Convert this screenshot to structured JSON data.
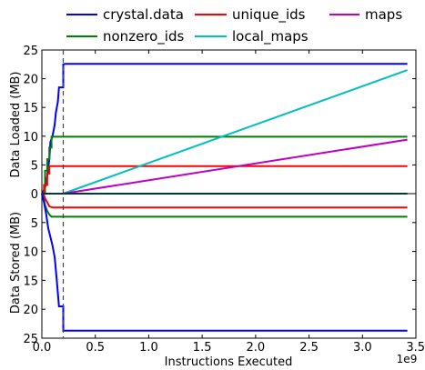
{
  "chart_data": {
    "type": "line",
    "xlabel": "Instructions Executed",
    "x_exponent_label": "1e9",
    "x_scale": 1000000000,
    "xlim": [
      0,
      3.5
    ],
    "x_ticks": [
      0.0,
      0.5,
      1.0,
      1.5,
      2.0,
      2.5,
      3.0,
      3.5
    ],
    "x_tick_labels": [
      "0.0",
      "0.5",
      "1.0",
      "1.5",
      "2.0",
      "2.5",
      "3.0",
      "3.5"
    ],
    "vline_x": 0.2,
    "legend": {
      "placement": "top",
      "items": [
        {
          "name": "crystal.data",
          "color": "#0000ff"
        },
        {
          "name": "unique_ids",
          "color": "#ff0000"
        },
        {
          "name": "maps",
          "color": "#bf00bf"
        },
        {
          "name": "nonzero_ids",
          "color": "#008000"
        },
        {
          "name": "local_maps",
          "color": "#00bfbf"
        }
      ]
    },
    "panels": [
      {
        "id": "loaded",
        "ylabel": "Data Loaded (MB)",
        "ylim": [
          0,
          25
        ],
        "y_ticks": [
          0,
          5,
          10,
          15,
          20,
          25
        ],
        "y_tick_labels": [
          "0",
          "5",
          "10",
          "15",
          "20",
          "25"
        ],
        "series": [
          {
            "name": "crystal.data",
            "color": "#0000ff",
            "x": [
              0,
              0.03,
              0.05,
              0.07,
              0.08,
              0.1,
              0.12,
              0.13,
              0.15,
              0.16,
              0.16,
              0.2,
              0.2,
              0.22,
              3.42
            ],
            "y": [
              0,
              1,
              3,
              6,
              9,
              10,
              12,
              14,
              16,
              18.5,
              18.5,
              18.5,
              22.5,
              22.6,
              22.6
            ]
          },
          {
            "name": "nonzero_ids",
            "color": "#008000",
            "x": [
              0,
              0.03,
              0.03,
              0.05,
              0.05,
              0.07,
              0.07,
              0.09,
              0.09,
              3.42
            ],
            "y": [
              0,
              0,
              4,
              4,
              6,
              6,
              8,
              8,
              9.9,
              9.9
            ]
          },
          {
            "name": "unique_ids",
            "color": "#ff0000",
            "x": [
              0,
              0.02,
              0.02,
              0.05,
              0.05,
              0.07,
              0.07,
              3.42
            ],
            "y": [
              0,
              0,
              1.5,
              1.5,
              3.5,
              3.5,
              4.8,
              4.8
            ]
          },
          {
            "name": "local_maps",
            "color": "#00bfbf",
            "x": [
              0.2,
              3.42
            ],
            "y": [
              0,
              21.5
            ]
          },
          {
            "name": "maps",
            "color": "#bf00bf",
            "x": [
              0.2,
              3.42
            ],
            "y": [
              0,
              9.4
            ]
          },
          {
            "name": "zero-baseline",
            "color": "#003a3a",
            "x": [
              0,
              3.42
            ],
            "y": [
              0,
              0
            ]
          }
        ]
      },
      {
        "id": "stored",
        "ylabel": "Data Stored (MB)",
        "ylim": [
          0,
          25
        ],
        "y_ticks": [
          0,
          5,
          10,
          15,
          20,
          25
        ],
        "y_tick_labels": [
          "0",
          "5",
          "10",
          "15",
          "20",
          "25"
        ],
        "inverted": true,
        "series": [
          {
            "name": "unique_ids",
            "color": "#ff0000",
            "x": [
              0,
              0.02,
              0.03,
              0.05,
              0.07,
              0.1,
              3.42
            ],
            "y": [
              0,
              0.3,
              0.8,
              1.5,
              2.2,
              2.4,
              2.4
            ]
          },
          {
            "name": "nonzero_ids",
            "color": "#008000",
            "x": [
              0,
              0.02,
              0.03,
              0.05,
              0.07,
              0.09,
              3.42
            ],
            "y": [
              0,
              1,
              2,
              3,
              3.6,
              4.0,
              4.0
            ]
          },
          {
            "name": "crystal.data",
            "color": "#0000ff",
            "x": [
              0,
              0.02,
              0.04,
              0.06,
              0.08,
              0.1,
              0.12,
              0.14,
              0.16,
              0.16,
              0.2,
              0.2,
              3.42
            ],
            "y": [
              0,
              1.5,
              3.5,
              6,
              7.5,
              9,
              11,
              15,
              19.5,
              19.5,
              19.5,
              23.7,
              23.7
            ]
          },
          {
            "name": "zero-baseline",
            "color": "#003a3a",
            "x": [
              0,
              3.42
            ],
            "y": [
              0,
              0
            ]
          }
        ]
      }
    ]
  }
}
